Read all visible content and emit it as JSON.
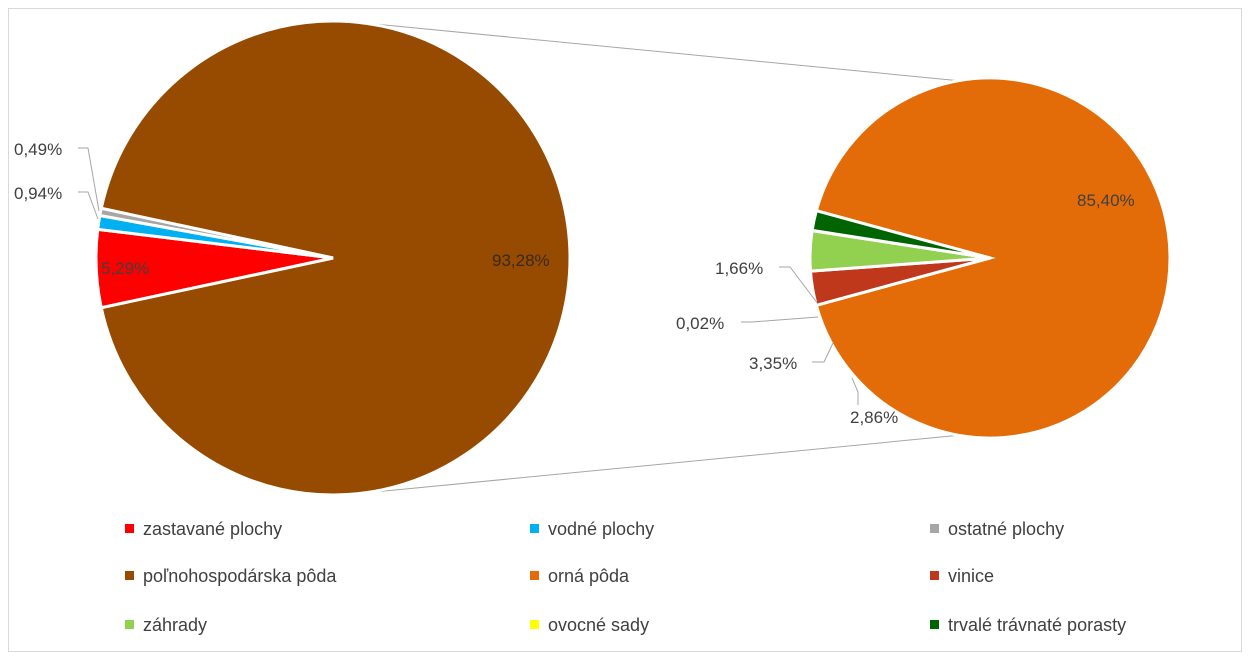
{
  "chart_data": {
    "type": "pie",
    "subtype": "pie-of-pie",
    "title": "",
    "main_pie": {
      "slices": [
        {
          "name": "poľnohospodárska pôda",
          "value": 93.28,
          "label": "93,28%",
          "color": "#964B00"
        },
        {
          "name": "zastavané plochy",
          "value": 5.29,
          "label": "5,29%",
          "color": "#FF0000"
        },
        {
          "name": "vodné plochy",
          "value": 0.94,
          "label": "0,94%",
          "color": "#00B0F0"
        },
        {
          "name": "ostatné plochy",
          "value": 0.49,
          "label": "0,49%",
          "color": "#A6A6A6"
        }
      ]
    },
    "secondary_pie": {
      "breakdown_of": "poľnohospodárska pôda",
      "slices": [
        {
          "name": "orná pôda",
          "value": 85.4,
          "label": "85,40%",
          "color": "#E36C09"
        },
        {
          "name": "vinice",
          "value": 2.86,
          "label": "2,86%",
          "color": "#C0381C"
        },
        {
          "name": "záhrady",
          "value": 3.35,
          "label": "3,35%",
          "color": "#92D050"
        },
        {
          "name": "ovocné sady",
          "value": 0.02,
          "label": "0,02%",
          "color": "#FFFF00"
        },
        {
          "name": "trvalé trávnaté porasty",
          "value": 1.66,
          "label": "1,66%",
          "color": "#006400"
        }
      ]
    },
    "legend": {
      "placement": "bottom",
      "items": [
        {
          "label": "zastavané plochy",
          "color": "#FF0000"
        },
        {
          "label": "vodné plochy",
          "color": "#00B0F0"
        },
        {
          "label": "ostatné plochy",
          "color": "#A6A6A6"
        },
        {
          "label": "poľnohospodárska pôda",
          "color": "#964B00"
        },
        {
          "label": "orná pôda",
          "color": "#E36C09"
        },
        {
          "label": "vinice",
          "color": "#C0381C"
        },
        {
          "label": "záhrady",
          "color": "#92D050"
        },
        {
          "label": "ovocné sady",
          "color": "#FFFF00"
        },
        {
          "label": "trvalé trávnaté porasty",
          "color": "#006400"
        }
      ]
    }
  }
}
